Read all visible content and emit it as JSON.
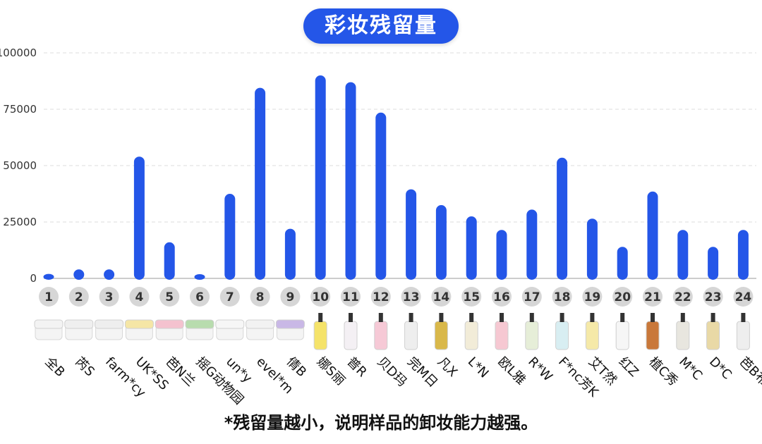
{
  "title": "彩妆残留量",
  "footnote": "*残留量越小，说明样品的卸妆能力越强。",
  "colors": {
    "bar": "#2456e8",
    "badge": "#d6d6d6",
    "grid": "#dddddd"
  },
  "chart_data": {
    "type": "bar",
    "title": "彩妆残留量",
    "ylim": [
      0,
      100000
    ],
    "yticks": [
      0,
      25000,
      50000,
      75000,
      100000
    ],
    "grid": true,
    "categories": [
      "1",
      "2",
      "3",
      "4",
      "5",
      "6",
      "7",
      "8",
      "9",
      "10",
      "11",
      "12",
      "13",
      "14",
      "15",
      "16",
      "17",
      "18",
      "19",
      "20",
      "21",
      "22",
      "23",
      "24"
    ],
    "product_names": [
      "全B",
      "芮S",
      "farm*cy",
      "UK*SS",
      "芭N兰",
      "摇G动物园",
      "un*y",
      "evel*m",
      "倩B",
      "娜S丽",
      "普R",
      "贝D玛",
      "完M日",
      "凡X",
      "L*N",
      "欧L雅",
      "R*W",
      "F*nc芳K",
      "艾T然",
      "红Z",
      "植C秀",
      "M*C",
      "D*C",
      "芭B布L"
    ],
    "product_types": [
      "balm",
      "balm",
      "balm",
      "balm",
      "balm",
      "balm",
      "balm",
      "balm",
      "balm",
      "bottle",
      "bottle",
      "bottle",
      "bottle",
      "bottle",
      "bottle",
      "bottle",
      "bottle",
      "bottle",
      "bottle",
      "bottle",
      "bottle",
      "bottle",
      "bottle",
      "bottle"
    ],
    "values": [
      2000,
      4000,
      4000,
      54000,
      16000,
      1500,
      37500,
      84500,
      22000,
      90000,
      87000,
      73500,
      39500,
      32500,
      27500,
      21500,
      30500,
      53500,
      26500,
      14000,
      38500,
      21500,
      14000,
      21500
    ]
  }
}
